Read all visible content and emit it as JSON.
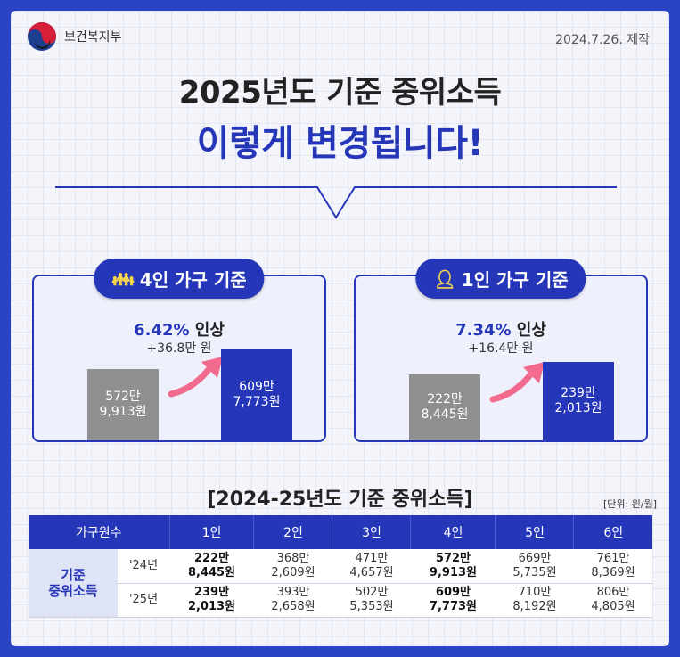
{
  "header": {
    "org_name": "보건복지부",
    "date": "2024.7.26. 제작",
    "logo_colors": {
      "red": "#d6203a",
      "blue": "#1e3e8f",
      "black": "#111111"
    }
  },
  "title": {
    "line1": "2025년도 기준 중위소득",
    "line2": "이렇게 변경됩니다!"
  },
  "panels": {
    "four": {
      "label": "4인 가구 기준",
      "icon": "family-icon",
      "rate_value": "6.42%",
      "rate_suffix": " 인상",
      "delta": "+36.8만 원",
      "old": {
        "line1": "572만",
        "line2": "9,913원"
      },
      "new": {
        "line1": "609만",
        "line2": "7,773원"
      }
    },
    "one": {
      "label": "1인 가구 기준",
      "icon": "person-icon",
      "rate_value": "7.34%",
      "rate_suffix": " 인상",
      "delta": "+16.4만 원",
      "old": {
        "line1": "222만",
        "line2": "8,445원"
      },
      "new": {
        "line1": "239만",
        "line2": "2,013원"
      }
    }
  },
  "table": {
    "title": "[2024-25년도 기준 중위소득]",
    "unit": "[단위: 원/월]",
    "header": [
      "가구원수",
      "1인",
      "2인",
      "3인",
      "4인",
      "5인",
      "6인"
    ],
    "row_label_line1": "기준",
    "row_label_line2": "중위소득",
    "rows": [
      {
        "year": "'24년",
        "cells": [
          [
            "222만",
            "8,445원"
          ],
          [
            "368만",
            "2,609원"
          ],
          [
            "471만",
            "4,657원"
          ],
          [
            "572만",
            "9,913원"
          ],
          [
            "669만",
            "5,735원"
          ],
          [
            "761만",
            "8,369원"
          ]
        ]
      },
      {
        "year": "'25년",
        "cells": [
          [
            "239만",
            "2,013원"
          ],
          [
            "393만",
            "2,658원"
          ],
          [
            "502만",
            "5,353원"
          ],
          [
            "609만",
            "7,773원"
          ],
          [
            "710만",
            "8,192원"
          ],
          [
            "806만",
            "4,805원"
          ]
        ]
      }
    ],
    "bold_columns": [
      0,
      3
    ]
  },
  "colors": {
    "brand_blue": "#2536b8",
    "bar_gray": "#8f8f8f",
    "arrow_pink": "#f26a8d"
  }
}
